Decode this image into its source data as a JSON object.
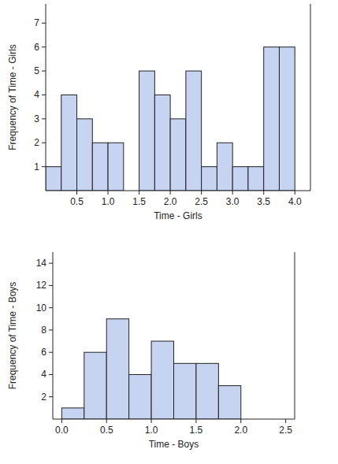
{
  "chart_data": [
    {
      "type": "histogram",
      "x_label": "Time - Girls",
      "y_label": "Frequency of Time - Girls",
      "bins": [
        0,
        0.25,
        0.5,
        0.75,
        1.0,
        1.25,
        1.5,
        1.75,
        2.0,
        2.25,
        2.5,
        2.75,
        3.0,
        3.25,
        3.5,
        3.75,
        4.0
      ],
      "values": [
        1,
        4,
        3,
        2,
        2,
        0,
        5,
        4,
        3,
        5,
        1,
        2,
        1,
        1,
        6,
        6
      ],
      "color": "#c6d4f1",
      "xlim": [
        0,
        4.25
      ],
      "ylim": [
        0,
        7.8
      ],
      "xticks": [
        0.5,
        {
          "value": 1,
          "label": "1.0"
        },
        1.5,
        {
          "value": 2,
          "label": "2.0"
        },
        2.5,
        {
          "value": 3,
          "label": "3.0"
        },
        3.5,
        {
          "value": 4,
          "label": "4.0"
        }
      ],
      "yticks": [
        1,
        2,
        3,
        4,
        5,
        6,
        7
      ]
    },
    {
      "type": "histogram",
      "x_label": "Time - Boys",
      "y_label": "Frequency of Time - Boys",
      "bins": [
        0,
        0.25,
        0.5,
        0.75,
        1.0,
        1.25,
        1.5,
        1.75,
        2.0
      ],
      "values": [
        1,
        6,
        9,
        4,
        7,
        5,
        5,
        3
      ],
      "color": "#c6d4f1",
      "xlim": [
        -0.1,
        2.6
      ],
      "ylim": [
        0,
        15
      ],
      "xticks": [
        {
          "value": 0,
          "label": "0.0"
        },
        0.5,
        {
          "value": 1,
          "label": "1.0"
        },
        1.5,
        {
          "value": 2,
          "label": "2.0"
        },
        2.5
      ],
      "yticks": [
        2,
        4,
        6,
        8,
        10,
        12,
        14
      ]
    }
  ]
}
